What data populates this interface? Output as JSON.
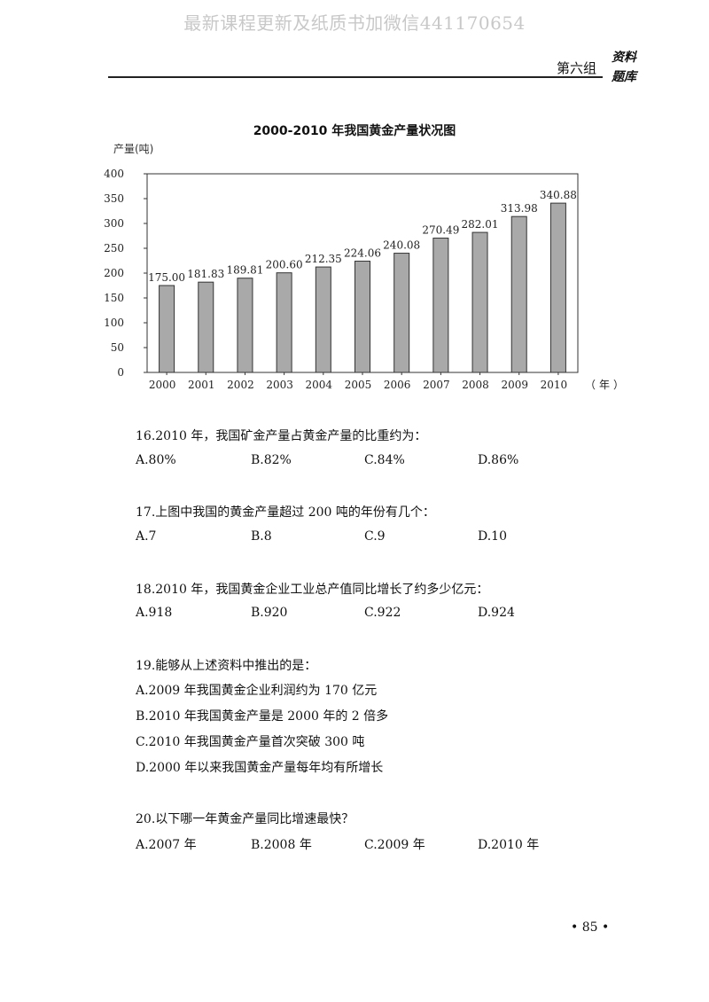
{
  "watermark": "最新课程更新及纸质书加微信441170654",
  "header": {
    "group": "第六组",
    "tag_line1": "资料",
    "tag_line2": "题库"
  },
  "chart_data": {
    "type": "bar",
    "title": "2000-2010 年我国黄金产量状况图",
    "ylabel": "产量(吨)",
    "xlabel": "（年）",
    "categories": [
      "2000",
      "2001",
      "2002",
      "2003",
      "2004",
      "2005",
      "2006",
      "2007",
      "2008",
      "2009",
      "2010"
    ],
    "values": [
      175.0,
      181.83,
      189.81,
      200.6,
      212.35,
      224.06,
      240.08,
      270.49,
      282.01,
      313.98,
      340.88
    ],
    "value_labels": [
      "175.00",
      "181.83",
      "189.81",
      "200.60",
      "212.35",
      "224.06",
      "240.08",
      "270.49",
      "282.01",
      "313.98",
      "340.88"
    ],
    "ylim": [
      0,
      400
    ],
    "yticks": [
      "0",
      "50",
      "100",
      "150",
      "200",
      "250",
      "300",
      "350",
      "400"
    ],
    "bar_color": "#a9a9a9",
    "grid": false
  },
  "questions": [
    {
      "stem": "16.2010 年，我国矿金产量占黄金产量的比重约为：",
      "options": [
        "A.80%",
        "B.82%",
        "C.84%",
        "D.86%"
      ]
    },
    {
      "stem": "17.上图中我国的黄金产量超过 200 吨的年份有几个：",
      "options": [
        "A.7",
        "B.8",
        "C.9",
        "D.10"
      ]
    },
    {
      "stem": "18.2010 年，我国黄金企业工业总产值同比增长了约多少亿元：",
      "options": [
        "A.918",
        "B.920",
        "C.922",
        "D.924"
      ]
    },
    {
      "stem": "19.能够从上述资料中推出的是：",
      "options": [
        "A.2009 年我国黄金企业利润约为 170 亿元",
        "B.2010 年我国黄金产量是 2000 年的 2 倍多",
        "C.2010 年我国黄金产量首次突破 300 吨",
        "D.2000 年以来我国黄金产量每年均有所增长"
      ]
    },
    {
      "stem": "20.以下哪一年黄金产量同比增速最快？",
      "options": [
        "A.2007 年",
        "B.2008 年",
        "C.2009 年",
        "D.2010 年"
      ]
    }
  ],
  "page_number": "• 85 •"
}
